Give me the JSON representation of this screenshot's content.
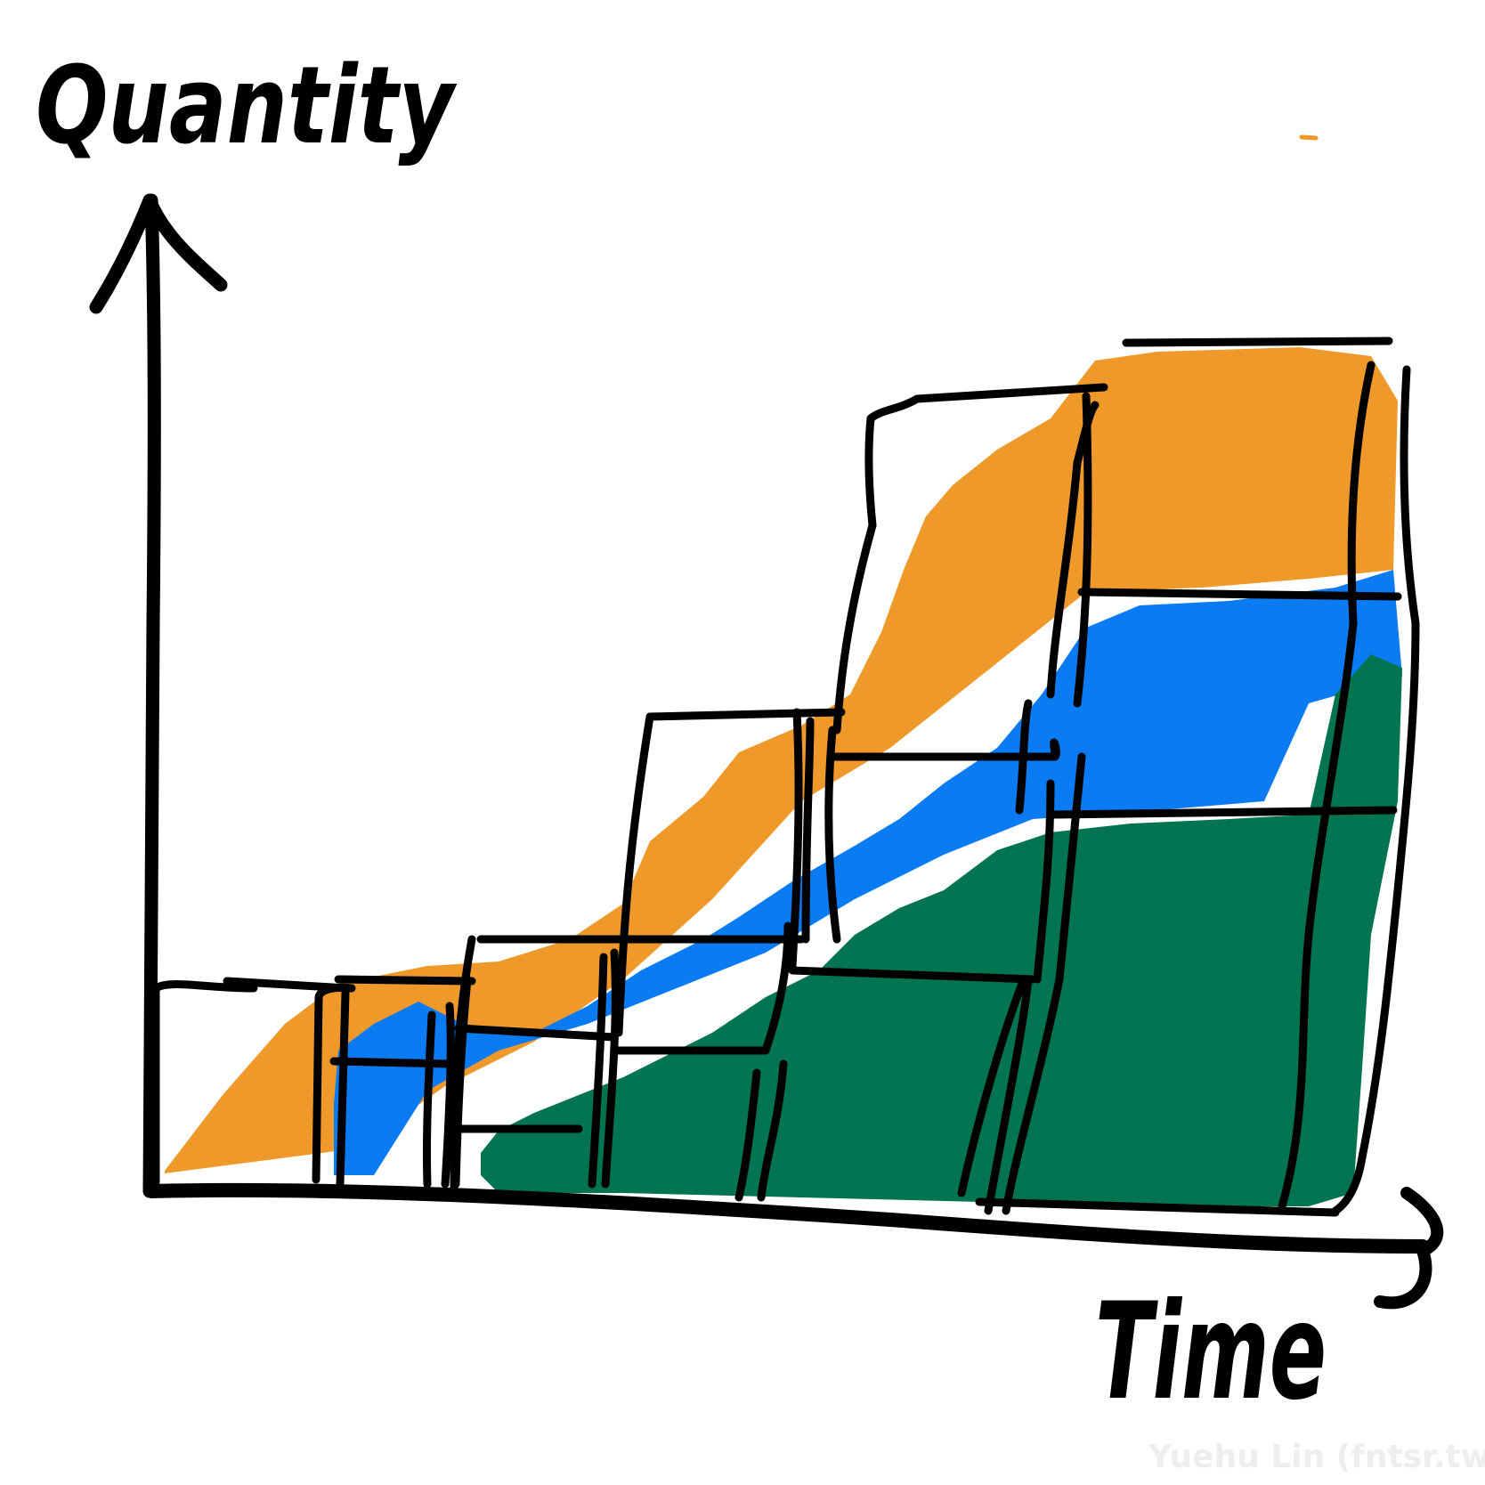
{
  "y_axis_label": "Quantity",
  "x_axis_label": "Time",
  "watermark": "Yuehu Lin (fntsr.tw)",
  "colors": {
    "orange": "#f0992b",
    "blue": "#0a7bf2",
    "green": "#027452",
    "ink": "#000000",
    "watermark": "#eeeeee"
  }
}
